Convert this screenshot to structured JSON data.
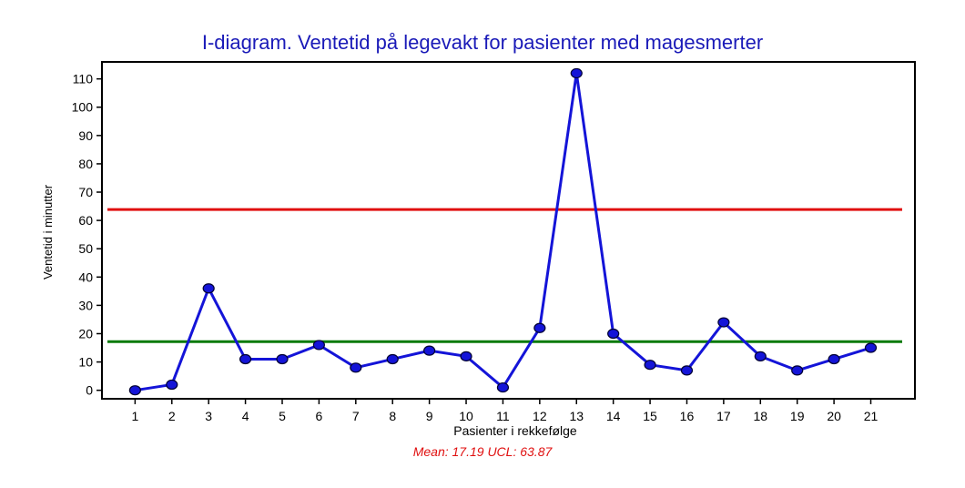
{
  "chart_data": {
    "type": "line",
    "title": "I-diagram. Ventetid på legevakt for pasienter med magesmerter",
    "xlabel": "Pasienter i rekkefølge",
    "ylabel": "Ventetid i minutter",
    "x": [
      1,
      2,
      3,
      4,
      5,
      6,
      7,
      8,
      9,
      10,
      11,
      12,
      13,
      14,
      15,
      16,
      17,
      18,
      19,
      20,
      21
    ],
    "series": [
      {
        "values": [
          0,
          2,
          36,
          11,
          11,
          16,
          8,
          11,
          14,
          12,
          1,
          22,
          112,
          20,
          9,
          7,
          24,
          12,
          7,
          11,
          15
        ],
        "color": "#1414d8"
      }
    ],
    "yticks": [
      0,
      10,
      20,
      30,
      40,
      50,
      60,
      70,
      80,
      90,
      100,
      110
    ],
    "ylim": [
      -3,
      116
    ],
    "xlim": [
      0.1,
      22.2
    ],
    "reference_lines": [
      {
        "label": "UCL",
        "value": 63.87,
        "color": "#e01010"
      },
      {
        "label": "Mean",
        "value": 17.19,
        "color": "#0a7a0a"
      }
    ],
    "grid": false,
    "legend": "none",
    "annotation": "Mean: 17.19 UCL: 63.87"
  }
}
